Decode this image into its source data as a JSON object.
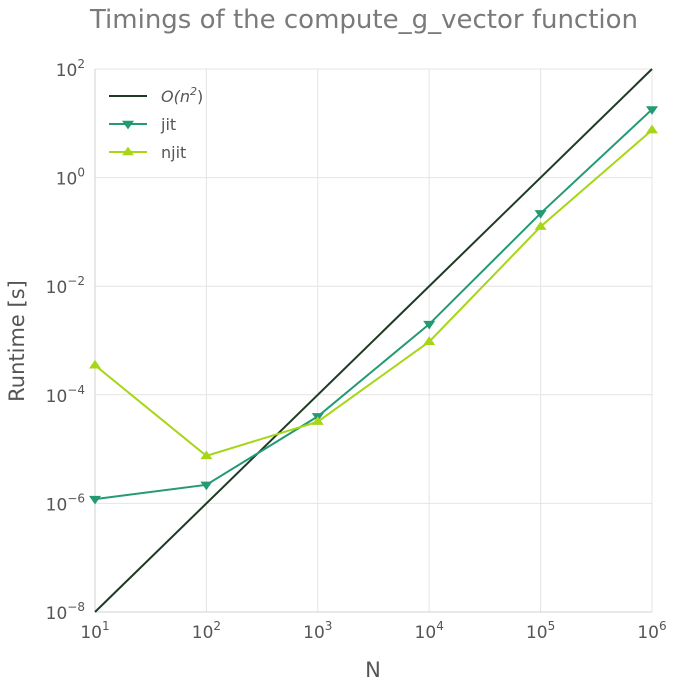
{
  "chart_data": {
    "type": "line",
    "title": "Timings of the compute_g_vector function",
    "xlabel": "N",
    "ylabel": "Runtime [s]",
    "x_scale": "log",
    "y_scale": "log",
    "xlim": [
      10,
      1000000
    ],
    "ylim": [
      1e-08,
      100
    ],
    "x_ticks": [
      {
        "value": 10,
        "base": "10",
        "exp": "1"
      },
      {
        "value": 100,
        "base": "10",
        "exp": "2"
      },
      {
        "value": 1000,
        "base": "10",
        "exp": "3"
      },
      {
        "value": 10000,
        "base": "10",
        "exp": "4"
      },
      {
        "value": 100000,
        "base": "10",
        "exp": "5"
      },
      {
        "value": 1000000,
        "base": "10",
        "exp": "6"
      }
    ],
    "y_ticks": [
      {
        "value": 1e-08,
        "base": "10",
        "exp": "−8"
      },
      {
        "value": 1e-06,
        "base": "10",
        "exp": "−6"
      },
      {
        "value": 0.0001,
        "base": "10",
        "exp": "−4"
      },
      {
        "value": 0.01,
        "base": "10",
        "exp": "−2"
      },
      {
        "value": 1,
        "base": "10",
        "exp": "0"
      },
      {
        "value": 100,
        "base": "10",
        "exp": "2"
      }
    ],
    "grid": true,
    "legend_position": "top-left",
    "series": [
      {
        "name": "O(n²)",
        "legend": {
          "italic_base": "O(n",
          "sup": "2",
          "tail": ")"
        },
        "color": "#1f3a24",
        "marker": "none",
        "x": [
          10,
          1000000
        ],
        "y": [
          1e-08,
          100
        ]
      },
      {
        "name": "jit",
        "color": "#239a74",
        "marker": "triangle-down",
        "x": [
          10,
          100,
          1000,
          10000,
          100000,
          1000000
        ],
        "y": [
          1.2e-06,
          2.2e-06,
          4e-05,
          0.002,
          0.22,
          18
        ]
      },
      {
        "name": "njit",
        "color": "#a6d615",
        "marker": "triangle-up",
        "x": [
          10,
          100,
          1000,
          10000,
          100000,
          1000000
        ],
        "y": [
          0.00035,
          7.5e-06,
          3.2e-05,
          0.00095,
          0.125,
          7.5
        ]
      }
    ]
  }
}
